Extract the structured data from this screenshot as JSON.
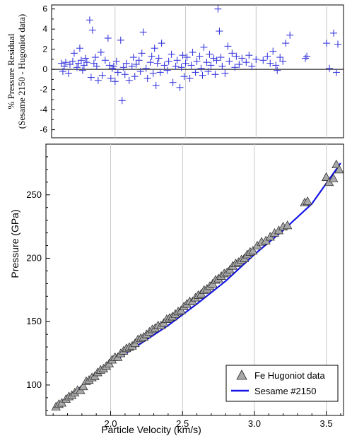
{
  "chart_data": [
    {
      "type": "scatter",
      "ylabel_line1": "% Pressure Residual",
      "ylabel_line2": "(Sesame 2150 - Hugoniot data)",
      "xlim": [
        1.55,
        3.62
      ],
      "ylim": [
        -6.8,
        6.4
      ],
      "yticks": [
        -6,
        -4,
        -2,
        0,
        2,
        4,
        6
      ],
      "xgrid": [
        2.0,
        2.5,
        3.0,
        3.5
      ],
      "zero_line": true,
      "colors": {
        "marker": "#3a3adf",
        "grid": "#c8c8c8",
        "zero": "#000000"
      },
      "series": [
        {
          "x": [
            1.62,
            1.63,
            1.64,
            1.65,
            1.67,
            1.68,
            1.7,
            1.71,
            1.73,
            1.74,
            1.75,
            1.76,
            1.77,
            1.78,
            1.79,
            1.8,
            1.82,
            1.83,
            1.84,
            1.85,
            1.86,
            1.87,
            1.88,
            1.9,
            1.91,
            1.93,
            1.95,
            1.96,
            1.97,
            1.98,
            1.99,
            2.0,
            2.01,
            2.02,
            2.04,
            2.05,
            2.06,
            2.07,
            2.08,
            2.1,
            2.12,
            2.13,
            2.14,
            2.15,
            2.17,
            2.18,
            2.19,
            2.2,
            2.22,
            2.23,
            2.25,
            2.26,
            2.27,
            2.28,
            2.29,
            2.3,
            2.31,
            2.32,
            2.33,
            2.35,
            2.37,
            2.38,
            2.4,
            2.41,
            2.43,
            2.44,
            2.46,
            2.47,
            2.48,
            2.49,
            2.5,
            2.51,
            2.53,
            2.54,
            2.55,
            2.57,
            2.58,
            2.6,
            2.61,
            2.62,
            2.63,
            2.65,
            2.66,
            2.67,
            2.68,
            2.7,
            2.71,
            2.72,
            2.73,
            2.74,
            2.75,
            2.76,
            2.78,
            2.8,
            2.81,
            2.83,
            2.85,
            2.86,
            2.88,
            2.9,
            2.93,
            2.95,
            2.97,
            3.0,
            3.05,
            3.08,
            3.1,
            3.12,
            3.14,
            3.15,
            3.17,
            3.19,
            3.21,
            3.24,
            3.35,
            3.36,
            3.5,
            3.52,
            3.55,
            3.57,
            3.58
          ],
          "y": [
            0.6,
            -0.2,
            0.3,
            0.7,
            -0.4,
            0.5,
            0.8,
            1.6,
            0.2,
            0.6,
            2.1,
            0.9,
            -0.1,
            0.4,
            1.1,
            0.7,
            4.9,
            -0.8,
            3.9,
            0.6,
            1.2,
            0.3,
            -1.1,
            1.7,
            -0.6,
            0.9,
            3.1,
            0.4,
            -0.9,
            0.1,
            0.3,
            -1.2,
            0.8,
            -0.3,
            2.9,
            -3.1,
            0.2,
            -0.5,
            0.6,
            -1.1,
            0.3,
            1.2,
            -0.7,
            0.5,
            0.9,
            -0.2,
            1.6,
            3.7,
            0.1,
            -0.9,
            0.7,
            1.3,
            -0.4,
            2.1,
            -1.6,
            0.6,
            1.1,
            -0.3,
            2.6,
            0.4,
            -0.1,
            0.8,
            1.5,
            -1.3,
            0.3,
            0.9,
            -1.8,
            0.2,
            1.4,
            -0.7,
            0.6,
            1.2,
            -0.9,
            0.4,
            1.7,
            -0.3,
            0.8,
            1.3,
            0.1,
            -0.6,
            2.2,
            0.7,
            -0.2,
            1.5,
            0.4,
            1.1,
            -0.5,
            0.9,
            6.0,
            3.8,
            1.2,
            0.3,
            -0.4,
            2.3,
            0.8,
            1.6,
            0.2,
            1.3,
            0.5,
            1.1,
            0.7,
            1.4,
            0.3,
            1.0,
            0.9,
            1.3,
            0.6,
            1.8,
            0.4,
            -0.1,
            1.2,
            0.8,
            2.6,
            3.4,
            1.1,
            1.3,
            2.6,
            0.1,
            3.6,
            -0.3,
            2.5
          ]
        }
      ]
    },
    {
      "type": "line",
      "xlabel": "Particle Velocity (km/s)",
      "ylabel": "Pressure (GPa)",
      "xlim": [
        1.55,
        3.62
      ],
      "ylim": [
        76,
        290
      ],
      "xticks": [
        2.0,
        2.5,
        3.0,
        3.5
      ],
      "yticks": [
        100,
        150,
        200,
        250
      ],
      "xgrid": [
        2.0,
        2.5,
        3.0,
        3.5
      ],
      "legend_position": "bottom-right",
      "colors": {
        "line": "#1515e6",
        "marker_fill": "#a8a8a8",
        "marker_stroke": "#222222",
        "grid": "#c8c8c8"
      },
      "series": [
        {
          "name": "Fe Hugoniot data",
          "kind": "scatter-triangle",
          "x": [
            1.62,
            1.64,
            1.66,
            1.69,
            1.71,
            1.73,
            1.75,
            1.77,
            1.79,
            1.81,
            1.83,
            1.85,
            1.87,
            1.89,
            1.91,
            1.93,
            1.95,
            1.97,
            1.99,
            2.01,
            2.03,
            2.05,
            2.07,
            2.09,
            2.11,
            2.13,
            2.15,
            2.17,
            2.19,
            2.21,
            2.23,
            2.25,
            2.27,
            2.29,
            2.31,
            2.33,
            2.35,
            2.37,
            2.39,
            2.41,
            2.43,
            2.45,
            2.47,
            2.49,
            2.51,
            2.53,
            2.55,
            2.57,
            2.59,
            2.61,
            2.63,
            2.65,
            2.67,
            2.69,
            2.71,
            2.73,
            2.75,
            2.77,
            2.79,
            2.81,
            2.83,
            2.85,
            2.87,
            2.89,
            2.91,
            2.93,
            2.95,
            2.97,
            2.99,
            3.02,
            3.05,
            3.08,
            3.11,
            3.14,
            3.17,
            3.2,
            3.23,
            3.35,
            3.37,
            3.5,
            3.52,
            3.55,
            3.57,
            3.59
          ],
          "y": [
            83,
            85,
            86,
            89,
            91,
            92,
            94,
            96,
            96,
            99,
            103,
            104,
            106,
            107,
            110,
            112,
            113,
            115,
            117,
            120,
            122,
            122,
            125,
            127,
            129,
            130,
            131,
            133,
            136,
            137,
            138,
            140,
            142,
            144,
            145,
            147,
            147,
            149,
            152,
            153,
            154,
            156,
            158,
            159,
            162,
            164,
            166,
            166,
            169,
            171,
            172,
            175,
            176,
            178,
            180,
            183,
            184,
            186,
            188,
            189,
            191,
            194,
            196,
            197,
            199,
            200,
            203,
            205,
            206,
            210,
            213,
            214,
            217,
            220,
            222,
            225,
            226,
            244,
            245,
            264,
            260,
            263,
            274,
            270
          ]
        },
        {
          "name": "Sesame #2150",
          "kind": "line",
          "x": [
            1.6,
            1.8,
            2.0,
            2.2,
            2.4,
            2.6,
            2.8,
            3.0,
            3.2,
            3.4,
            3.6
          ],
          "y": [
            82,
            99,
            117,
            132,
            147,
            164,
            182,
            203,
            222,
            243,
            275
          ]
        }
      ]
    }
  ]
}
